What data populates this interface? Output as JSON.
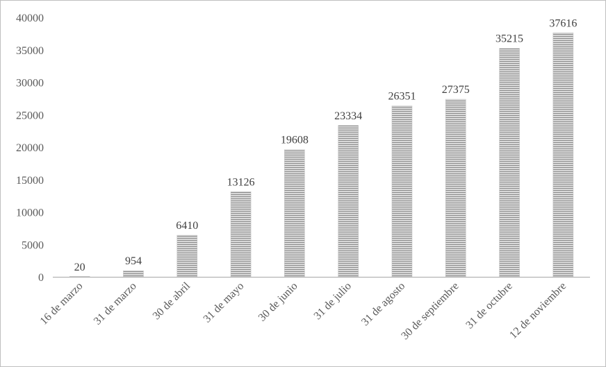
{
  "chart_data": {
    "type": "bar",
    "categories": [
      "16 de marzo",
      "31 de marzo",
      "30 de abril",
      "31 de mayo",
      "30 de junio",
      "31 de julio",
      "31 de agosto",
      "30 de septiembre",
      "31 de octubre",
      "12 de noviembre"
    ],
    "values": [
      20,
      954,
      6410,
      13126,
      19608,
      23334,
      26351,
      27375,
      35215,
      37616
    ],
    "title": "",
    "xlabel": "",
    "ylabel": "",
    "ylim": [
      0,
      40000
    ],
    "yticks": [
      0,
      5000,
      10000,
      15000,
      20000,
      25000,
      30000,
      35000,
      40000
    ],
    "grid": false,
    "legend": "none",
    "data_labels": true,
    "colors": {
      "bar_fill": "#d9d9d9",
      "bar_stripe": "#8c8c8c",
      "axis": "#a6a6a6",
      "tick_text": "#595959",
      "label_text": "#404040"
    }
  }
}
